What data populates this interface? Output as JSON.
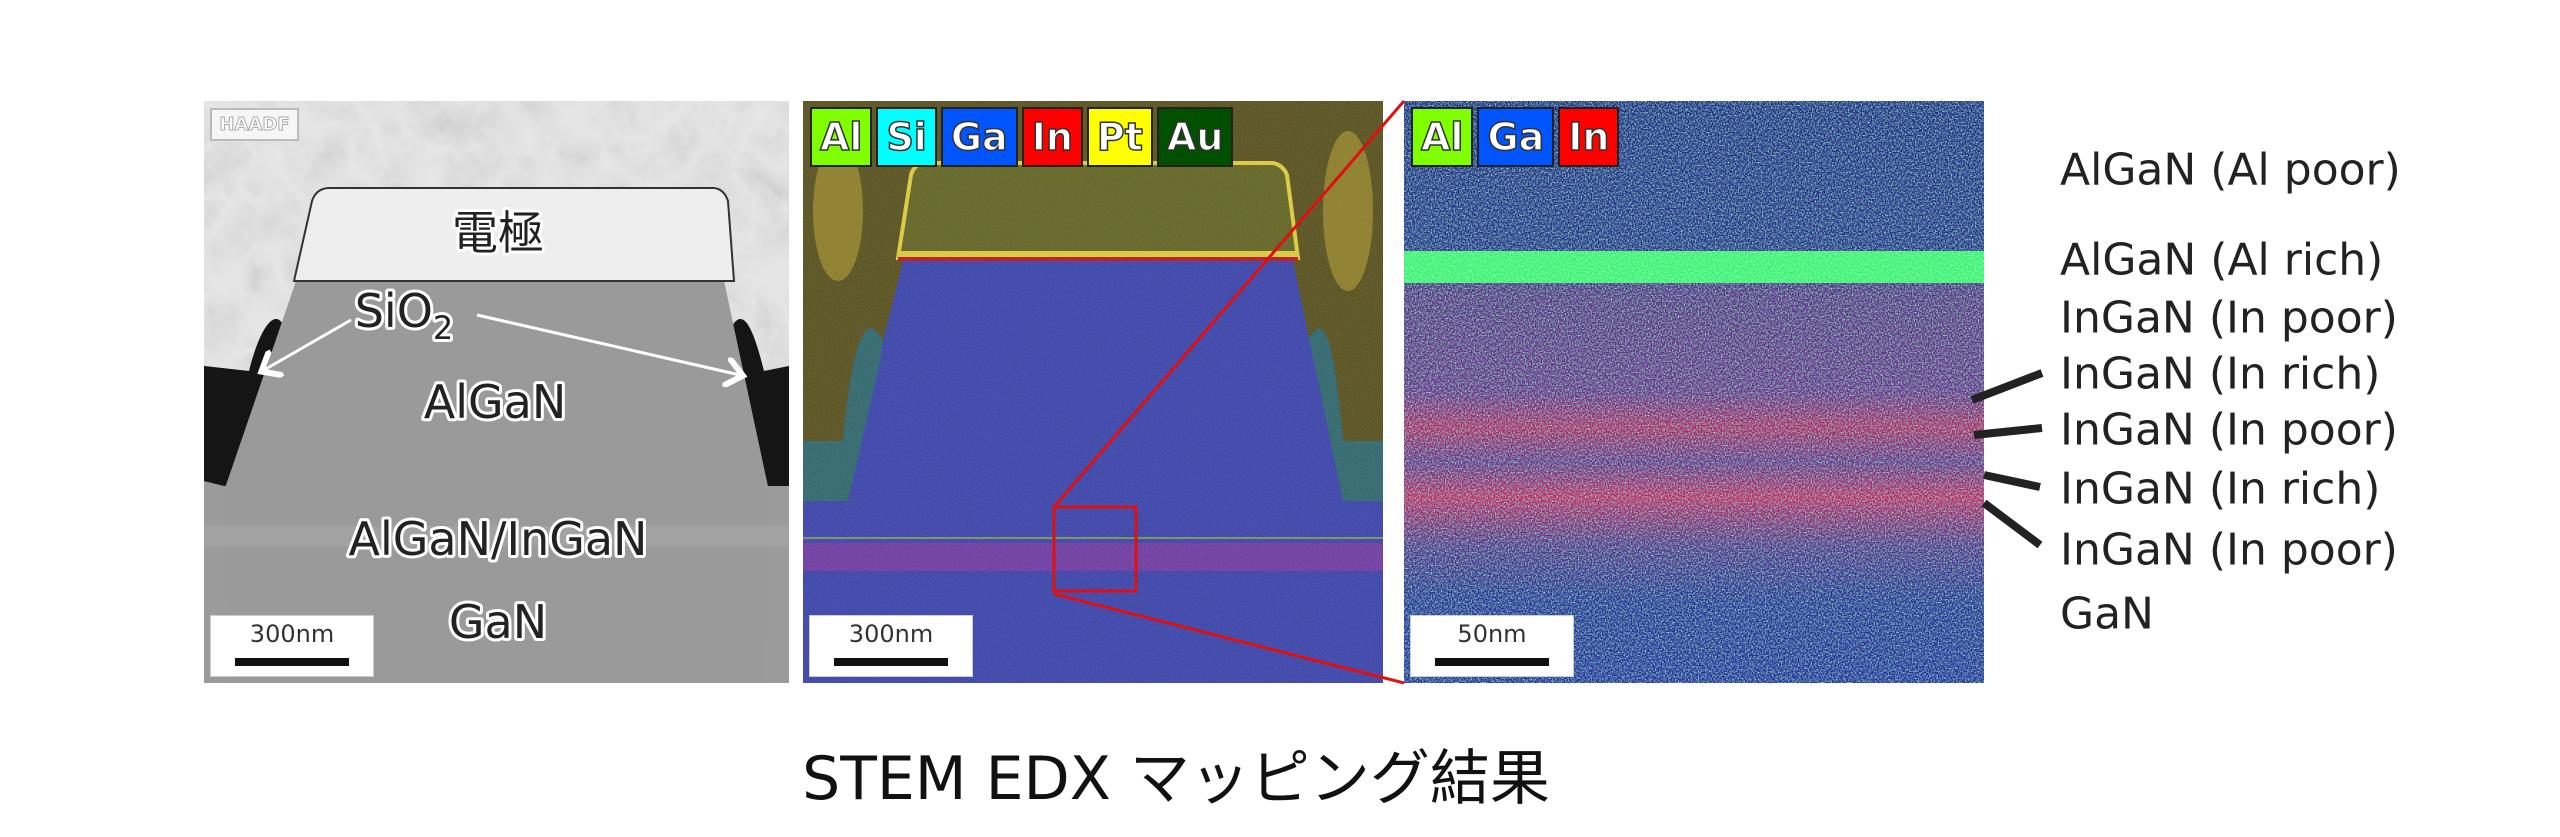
{
  "haadf_panel": {
    "tag": "HAADF",
    "labels": {
      "electrode": "電極",
      "sio2": "SiO",
      "sio2_sub": "2",
      "algan": "AlGaN",
      "algan_ingan": "AlGaN/InGaN",
      "gan": "GaN"
    },
    "scale_bar": "300nm"
  },
  "edx_panel": {
    "legend": [
      {
        "label": "Al",
        "color": "#7fff00"
      },
      {
        "label": "Si",
        "color": "#00ffff"
      },
      {
        "label": "Ga",
        "color": "#0055ff"
      },
      {
        "label": "In",
        "color": "#ff0000"
      },
      {
        "label": "Pt",
        "color": "#ffff00"
      },
      {
        "label": "Au",
        "color": "#005000"
      }
    ],
    "scale_bar": "300nm"
  },
  "zoom_panel": {
    "legend": [
      {
        "label": "Al",
        "color": "#7fff00"
      },
      {
        "label": "Ga",
        "color": "#0055ff"
      },
      {
        "label": "In",
        "color": "#ff0000"
      }
    ],
    "scale_bar": "50nm"
  },
  "layer_labels": [
    "AlGaN (Al poor)",
    "AlGaN (Al rich)",
    "InGaN (In poor)",
    "InGaN (In rich)",
    "InGaN (In poor)",
    "InGaN (In rich)",
    "InGaN (In poor)",
    "GaN"
  ],
  "caption": "STEM EDX マッピング結果"
}
